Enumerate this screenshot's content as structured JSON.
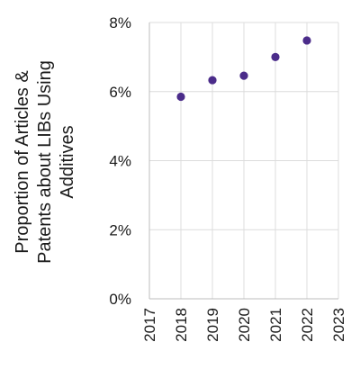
{
  "chart_data": {
    "type": "scatter",
    "title": "",
    "ylabel_lines": [
      "Proportion of Articles &",
      "Patents about LIBs Using",
      "Additives"
    ],
    "xlabel": "",
    "x": [
      2018,
      2019,
      2020,
      2021,
      2022
    ],
    "y": [
      5.85,
      6.33,
      6.46,
      7.0,
      7.48
    ],
    "xlim": [
      2017,
      2023
    ],
    "ylim": [
      0,
      8
    ],
    "x_ticks": [
      2017,
      2018,
      2019,
      2020,
      2021,
      2022,
      2023
    ],
    "x_tick_labels": [
      "2017",
      "2018",
      "2019",
      "2020",
      "2021",
      "2022",
      "2023"
    ],
    "y_ticks": [
      0,
      2,
      4,
      6,
      8
    ],
    "y_tick_labels": [
      "0%",
      "2%",
      "4%",
      "6%",
      "8%"
    ],
    "grid": true,
    "marker_color": "#4b2c8a"
  }
}
